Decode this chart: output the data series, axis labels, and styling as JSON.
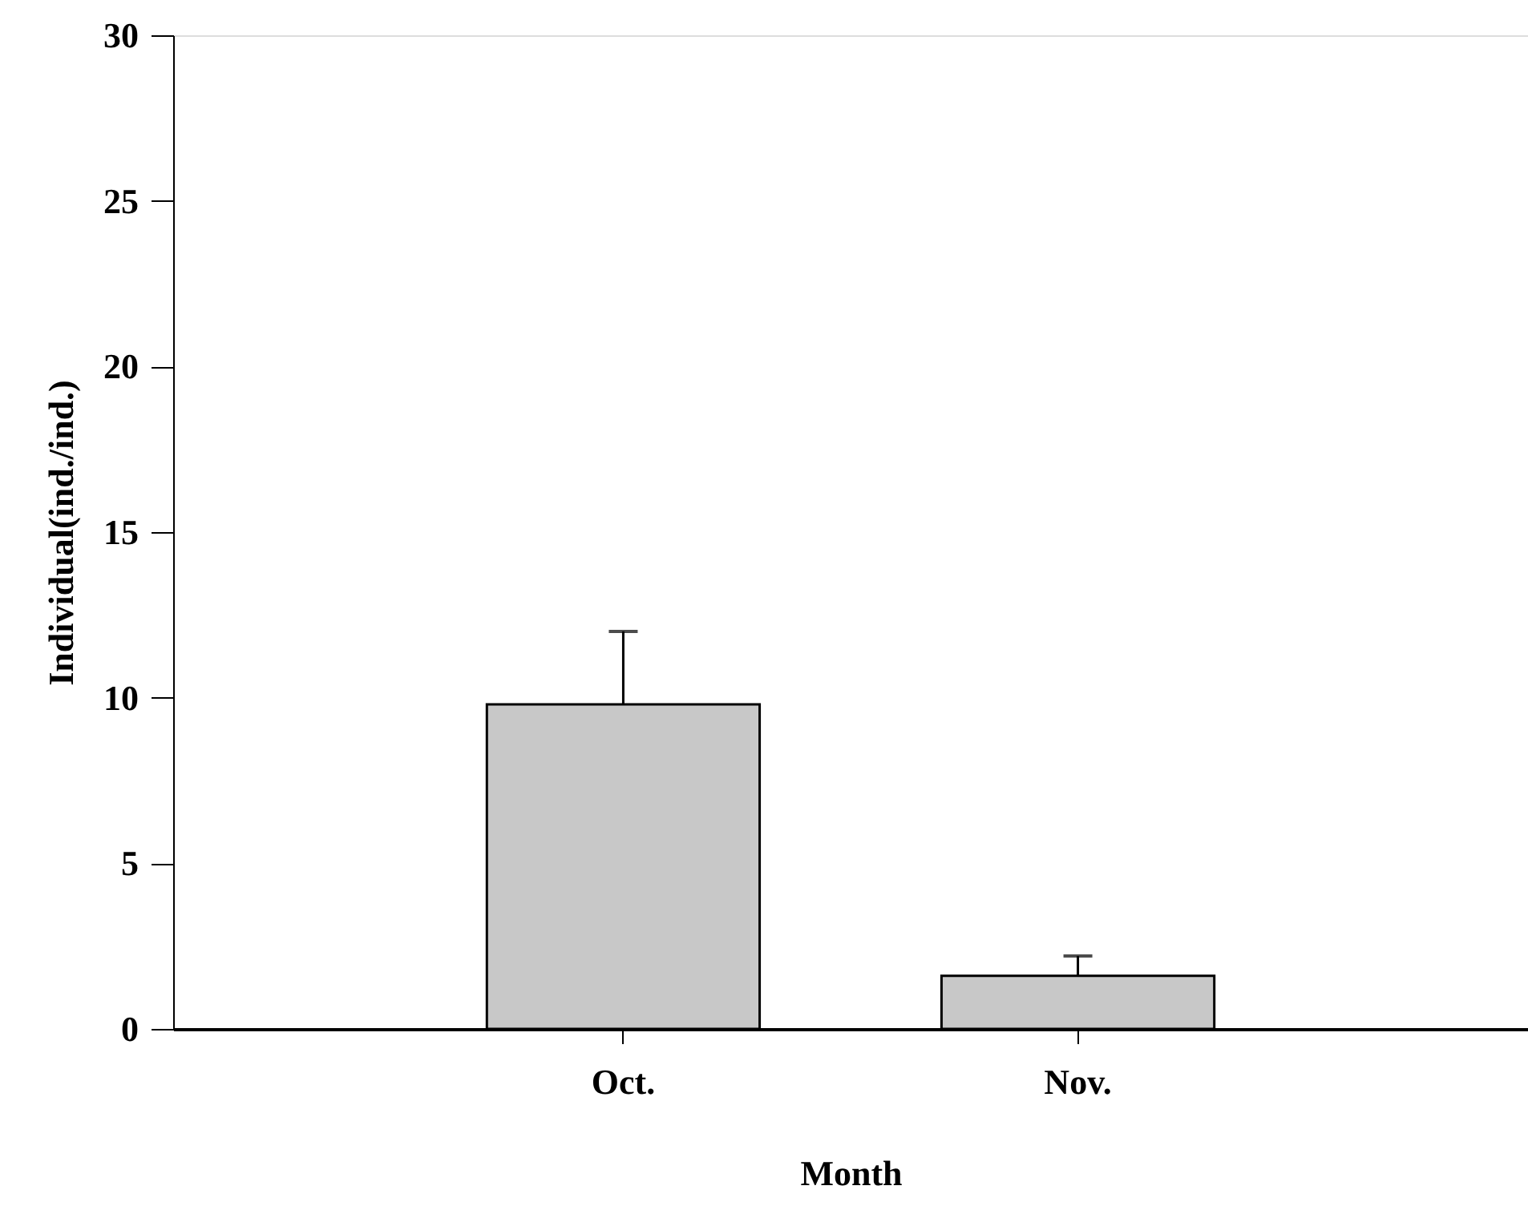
{
  "chart_data": {
    "type": "bar",
    "xlabel": "Month",
    "ylabel": "Individual(ind./ind.)",
    "categories": [
      "Oct.",
      "Nov."
    ],
    "values": [
      9.8,
      1.6
    ],
    "errors": [
      [
        9.8,
        12.0
      ],
      [
        1.6,
        2.2
      ]
    ],
    "color": "#c8c8c8",
    "ylim": [
      0,
      30
    ],
    "yticks": [
      0,
      5,
      10,
      15,
      20,
      25,
      30
    ],
    "grid": false
  }
}
